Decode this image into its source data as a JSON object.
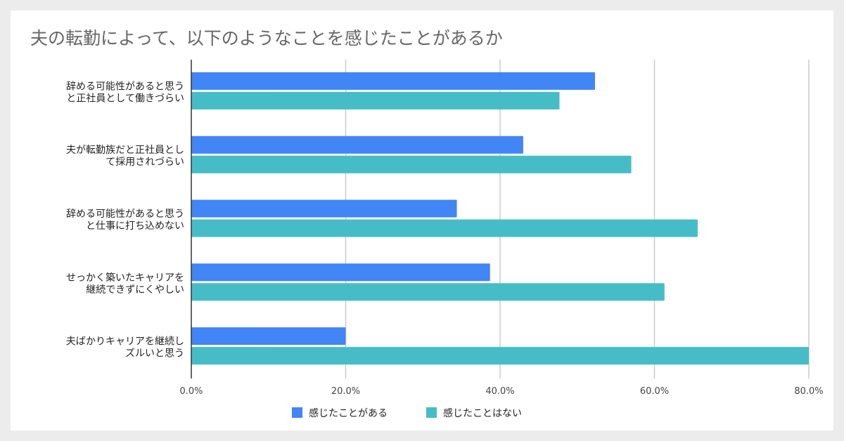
{
  "title": "夫の転勤によって、以下のようなことを感じたことがあるか",
  "colors": {
    "series1": "#4285f4",
    "series2": "#46bdc6",
    "grid": "#cccccc",
    "axis": "#333333"
  },
  "chart_data": {
    "type": "bar",
    "orientation": "horizontal",
    "categories": [
      [
        "辞める可能性があると思う",
        "と正社員として働きづらい"
      ],
      [
        "夫が転勤族だと正社員とし",
        "て採用されづらい"
      ],
      [
        "辞める可能性があると思う",
        "と仕事に打ち込めない"
      ],
      [
        "せっかく築いたキャリアを",
        "継続できずにくやしい"
      ],
      [
        "夫ばかりキャリアを継続し",
        "ズルいと思う"
      ]
    ],
    "series": [
      {
        "name": "感じたことがある",
        "values": [
          52.3,
          43.0,
          34.4,
          38.7,
          20.0
        ]
      },
      {
        "name": "感じたことはない",
        "values": [
          47.7,
          57.0,
          65.6,
          61.3,
          80.0
        ]
      }
    ],
    "xlim": [
      0,
      80
    ],
    "xticks": [
      "0.0%",
      "20.0%",
      "40.0%",
      "60.0%",
      "80.0%"
    ],
    "xtick_values": [
      0,
      20,
      40,
      60,
      80
    ],
    "grid": true,
    "legend_position": "bottom"
  }
}
